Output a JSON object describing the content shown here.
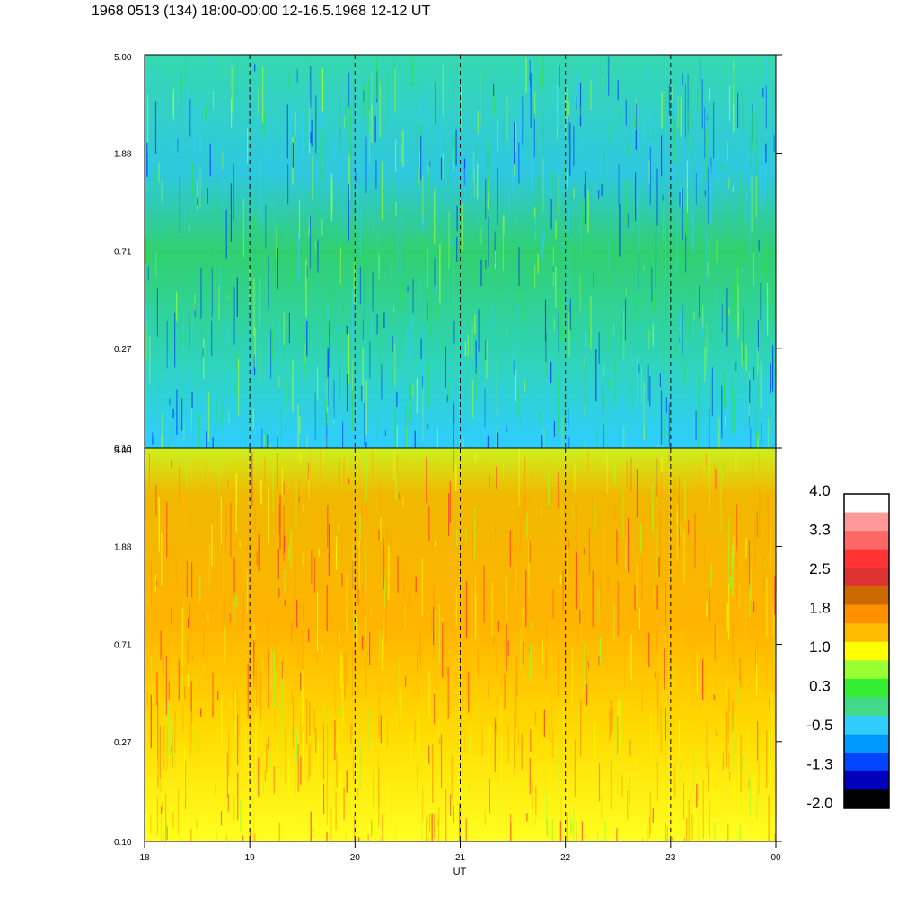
{
  "title": "1968 0513 (134) 18:00-00:00 12-16.5.1968  12-12 UT",
  "chart_data": [
    {
      "type": "heatmap",
      "panel": "upper",
      "y_ticks": [
        "5.00",
        "1.88",
        "0.71",
        "0.27",
        "0.10"
      ],
      "y_scale": "log",
      "ylim": [
        0.1,
        5.0
      ],
      "dominant_colors": [
        "#2fe03a",
        "#2fcdff",
        "#0033ff",
        "#a0ff30"
      ],
      "vertical_guides_at": [
        19,
        20,
        21,
        22,
        23
      ]
    },
    {
      "type": "heatmap",
      "panel": "lower",
      "y_ticks": [
        "5.00",
        "1.88",
        "0.71",
        "0.27",
        "0.10"
      ],
      "y_scale": "log",
      "ylim": [
        0.1,
        5.0
      ],
      "dominant_colors": [
        "#ffb400",
        "#ff9a00",
        "#ffff00",
        "#a0ff30",
        "#ff3333"
      ],
      "vertical_guides_at": [
        19,
        20,
        21,
        22,
        23
      ]
    }
  ],
  "x_axis": {
    "ticks": [
      "18",
      "19",
      "20",
      "21",
      "22",
      "23",
      "00"
    ],
    "label": "UT"
  },
  "colorbar": {
    "labels": [
      "4.0",
      "3.3",
      "2.5",
      "1.8",
      "1.0",
      "0.3",
      "-0.5",
      "-1.3",
      "-2.0"
    ],
    "colors": [
      "#ffffff",
      "#ff9999",
      "#ff6666",
      "#ff3333",
      "#dd3333",
      "#cc6a00",
      "#ff9000",
      "#ffbb00",
      "#ffff00",
      "#99ff33",
      "#33ee33",
      "#44d98a",
      "#33ccff",
      "#0099ff",
      "#0044ff",
      "#0000bb",
      "#000000"
    ]
  }
}
